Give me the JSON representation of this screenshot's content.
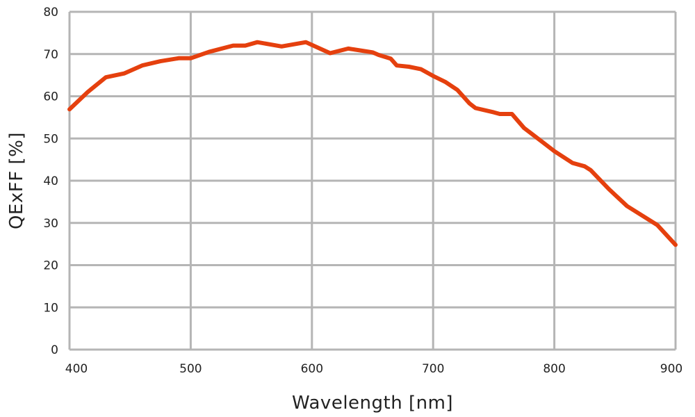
{
  "chart_data": {
    "type": "line",
    "title": "",
    "xlabel": "Wavelength [nm]",
    "ylabel": "QExFF [%]",
    "xlim": [
      400,
      900
    ],
    "ylim": [
      0,
      80
    ],
    "xticks": [
      400,
      500,
      600,
      700,
      800,
      900
    ],
    "yticks": [
      0,
      10,
      20,
      30,
      40,
      50,
      60,
      70,
      80
    ],
    "grid": true,
    "colors": {
      "line": "#e5400e",
      "grid": "#b5b5b5"
    },
    "series": [
      {
        "x": [
          400,
          415,
          430,
          445,
          460,
          475,
          490,
          500,
          515,
          535,
          545,
          555,
          575,
          595,
          605,
          615,
          630,
          650,
          655,
          665,
          670,
          680,
          690,
          700,
          710,
          720,
          730,
          735,
          750,
          755,
          765,
          775,
          790,
          800,
          815,
          825,
          830,
          845,
          860,
          885,
          900
        ],
        "y": [
          56.9,
          61,
          64.5,
          65.4,
          67.3,
          68.3,
          69,
          69,
          70.5,
          72,
          72,
          72.8,
          71.8,
          72.8,
          71.5,
          70.2,
          71.3,
          70.4,
          69.8,
          68.9,
          67.3,
          67,
          66.4,
          64.8,
          63.4,
          61.5,
          58.3,
          57.2,
          56.2,
          55.8,
          55.8,
          52.5,
          49.2,
          47,
          44.2,
          43.4,
          42.5,
          38,
          34,
          29.5,
          24.8
        ]
      }
    ]
  }
}
